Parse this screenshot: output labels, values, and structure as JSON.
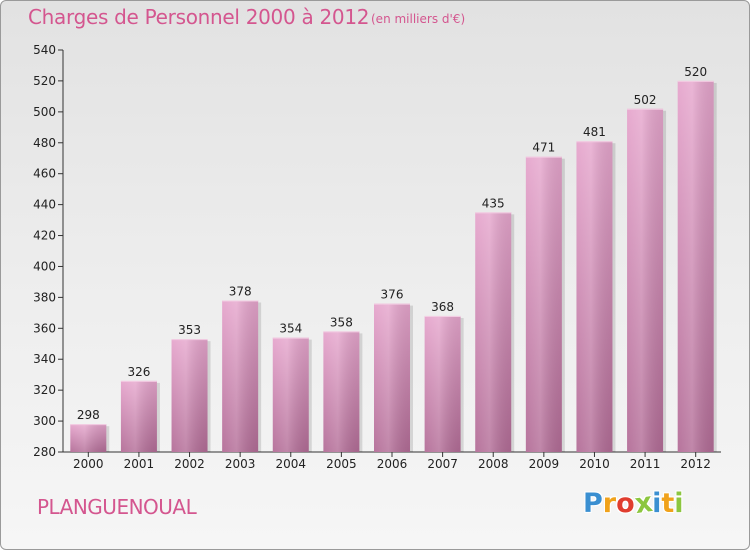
{
  "chart_data": {
    "type": "bar",
    "title": "Charges de Personnel 2000 à 2012",
    "subtitle": "(en milliers d'€)",
    "categories": [
      "2000",
      "2001",
      "2002",
      "2003",
      "2004",
      "2005",
      "2006",
      "2007",
      "2008",
      "2009",
      "2010",
      "2011",
      "2012"
    ],
    "values": [
      298,
      326,
      353,
      378,
      354,
      358,
      376,
      368,
      435,
      471,
      481,
      502,
      520
    ],
    "yticks": [
      280,
      300,
      320,
      340,
      360,
      380,
      400,
      420,
      440,
      460,
      480,
      500,
      520,
      540
    ],
    "ylim": [
      280,
      540
    ],
    "xlabel": "",
    "ylabel": "",
    "grid": false,
    "bar_color": "#d77fb2"
  },
  "footer": {
    "city": "PLANGUENOUAL",
    "logo": {
      "text": "Proxiti",
      "letters": [
        {
          "ch": "P",
          "color": "#3a8fd1"
        },
        {
          "ch": "r",
          "color": "#f0a21b"
        },
        {
          "ch": "o",
          "color": "#e03d2f"
        },
        {
          "ch": "x",
          "color": "#8cc63f"
        },
        {
          "ch": "i",
          "color": "#3a8fd1"
        },
        {
          "ch": "t",
          "color": "#f0a21b"
        },
        {
          "ch": "i",
          "color": "#8cc63f"
        }
      ]
    }
  }
}
